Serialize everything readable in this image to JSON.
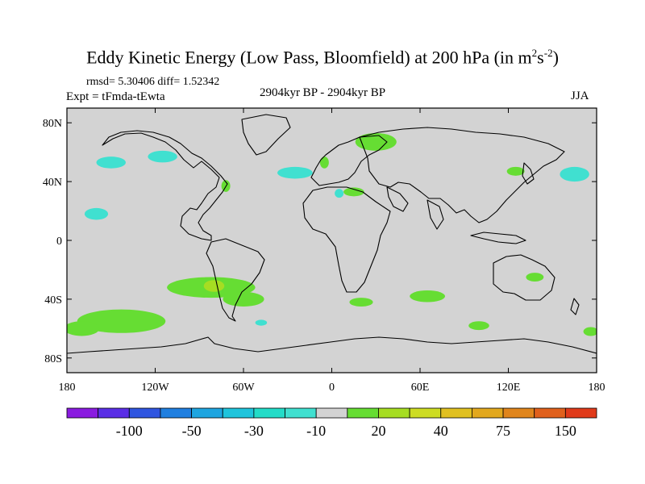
{
  "title": {
    "prefix": "Eddy Kinetic Energy (Low Pass, Bloomfield) at 200 hPa (in m",
    "sup1": "2",
    "mid": "s",
    "sup2": "-2",
    "suffix": ")"
  },
  "rmsd_text": "rmsd= 5.30406 diff= 1.52342",
  "experiment_text": "Expt = tFmda-tEwta",
  "period_text": "2904kyr BP - 2904kyr BP",
  "season_text": "JJA",
  "map": {
    "lon_range": [
      -180,
      180
    ],
    "lat_range": [
      -90,
      90
    ],
    "lat_ticks": [
      {
        "v": 80,
        "label": "80N"
      },
      {
        "v": 40,
        "label": "40N"
      },
      {
        "v": 0,
        "label": "0"
      },
      {
        "v": -40,
        "label": "40S"
      },
      {
        "v": -80,
        "label": "80S"
      }
    ],
    "lon_ticks": [
      {
        "v": -180,
        "label": "180"
      },
      {
        "v": -120,
        "label": "120W"
      },
      {
        "v": -60,
        "label": "60W"
      },
      {
        "v": 0,
        "label": "0"
      },
      {
        "v": 60,
        "label": "60E"
      },
      {
        "v": 120,
        "label": "120E"
      },
      {
        "v": 180,
        "label": "180"
      }
    ],
    "background_color": "#d3d3d3"
  },
  "colorbar": {
    "colors": [
      "#8a1be0",
      "#5a2ee6",
      "#2f55e0",
      "#1f7fe0",
      "#1ea5e0",
      "#1fc4dc",
      "#23dcc8",
      "#40e0d0",
      "#d3d3d3",
      "#66dd33",
      "#a6dd22",
      "#cddc23",
      "#e0c020",
      "#e2a81e",
      "#e0851c",
      "#e0601c",
      "#e03a1a"
    ],
    "labels": [
      {
        "boundary": 2,
        "label": "-100"
      },
      {
        "boundary": 4,
        "label": "-50"
      },
      {
        "boundary": 6,
        "label": "-30"
      },
      {
        "boundary": 8,
        "label": "-10"
      },
      {
        "boundary": 10,
        "label": "20"
      },
      {
        "boundary": 12,
        "label": "40"
      },
      {
        "boundary": 14,
        "label": "75"
      },
      {
        "boundary": 16,
        "label": "150"
      }
    ]
  },
  "regions": [
    {
      "name": "green-south-america-plume",
      "color": "#66dd33",
      "lon": -82,
      "lat": -32,
      "rx": 30,
      "ry": 7
    },
    {
      "name": "green-south-america-east",
      "color": "#66dd33",
      "lon": -60,
      "lat": -40,
      "rx": 14,
      "ry": 5
    },
    {
      "name": "yellowgreen-south-america-core",
      "color": "#a6dd22",
      "lon": -80,
      "lat": -31,
      "rx": 7,
      "ry": 4
    },
    {
      "name": "green-south-pacific",
      "color": "#66dd33",
      "lon": -143,
      "lat": -55,
      "rx": 30,
      "ry": 8
    },
    {
      "name": "green-south-pacific-west",
      "color": "#66dd33",
      "lon": -170,
      "lat": -60,
      "rx": 12,
      "ry": 5
    },
    {
      "name": "green-indian-ocean",
      "color": "#66dd33",
      "lon": 65,
      "lat": -38,
      "rx": 12,
      "ry": 4
    },
    {
      "name": "green-south-atlantic",
      "color": "#66dd33",
      "lon": 20,
      "lat": -42,
      "rx": 8,
      "ry": 3
    },
    {
      "name": "green-south-australia",
      "color": "#66dd33",
      "lon": 100,
      "lat": -58,
      "rx": 7,
      "ry": 3
    },
    {
      "name": "green-australia-east",
      "color": "#66dd33",
      "lon": 138,
      "lat": -25,
      "rx": 6,
      "ry": 3
    },
    {
      "name": "green-tasman",
      "color": "#66dd33",
      "lon": 176,
      "lat": -62,
      "rx": 5,
      "ry": 3
    },
    {
      "name": "green-scandinavia",
      "color": "#66dd33",
      "lon": 30,
      "lat": 67,
      "rx": 14,
      "ry": 6
    },
    {
      "name": "green-north-atlantic",
      "color": "#66dd33",
      "lon": -5,
      "lat": 53,
      "rx": 3,
      "ry": 4
    },
    {
      "name": "green-mediterranean",
      "color": "#66dd33",
      "lon": 15,
      "lat": 33,
      "rx": 7,
      "ry": 3
    },
    {
      "name": "green-east-asia",
      "color": "#66dd33",
      "lon": 125,
      "lat": 47,
      "rx": 6,
      "ry": 3
    },
    {
      "name": "green-north-america",
      "color": "#66dd33",
      "lon": -72,
      "lat": 37,
      "rx": 3,
      "ry": 4
    },
    {
      "name": "cyan-north-pacific",
      "color": "#40e0d0",
      "lon": -150,
      "lat": 53,
      "rx": 10,
      "ry": 4
    },
    {
      "name": "cyan-canada",
      "color": "#40e0d0",
      "lon": -115,
      "lat": 57,
      "rx": 10,
      "ry": 4
    },
    {
      "name": "cyan-california",
      "color": "#40e0d0",
      "lon": -160,
      "lat": 18,
      "rx": 8,
      "ry": 4
    },
    {
      "name": "cyan-north-atlantic",
      "color": "#40e0d0",
      "lon": -25,
      "lat": 46,
      "rx": 12,
      "ry": 4
    },
    {
      "name": "cyan-pacific-east",
      "color": "#40e0d0",
      "lon": 165,
      "lat": 45,
      "rx": 10,
      "ry": 5
    },
    {
      "name": "cyan-iberia",
      "color": "#40e0d0",
      "lon": 5,
      "lat": 32,
      "rx": 3,
      "ry": 3
    },
    {
      "name": "cyan-falklands",
      "color": "#40e0d0",
      "lon": -48,
      "lat": -56,
      "rx": 4,
      "ry": 2
    }
  ]
}
